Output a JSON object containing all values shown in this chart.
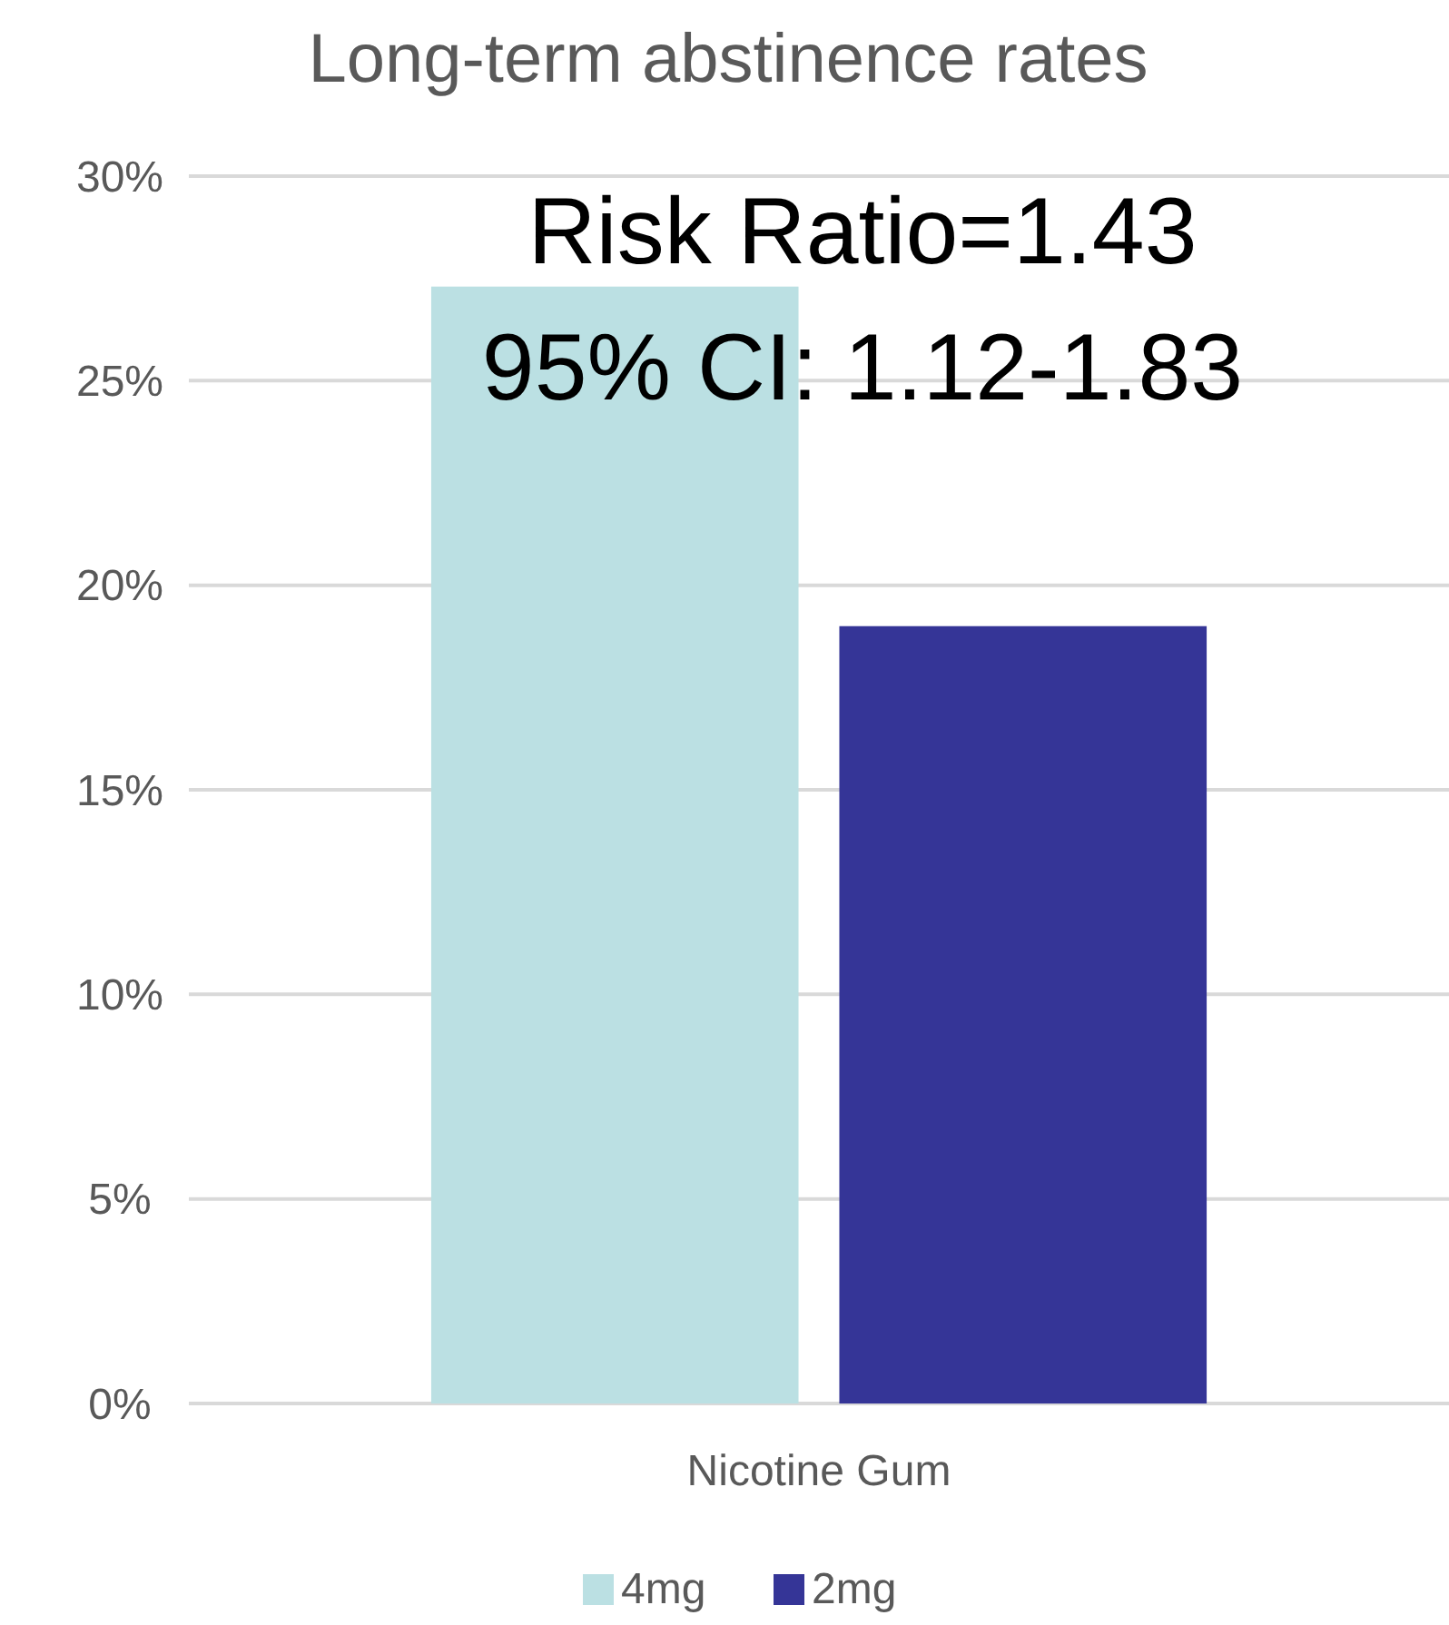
{
  "chart_data": {
    "type": "bar",
    "title": "Long-term abstinence rates",
    "categories": [
      "Nicotine Gum"
    ],
    "series": [
      {
        "name": "4mg",
        "color": "#bbe0e3",
        "values": [
          27.3
        ]
      },
      {
        "name": "2mg",
        "color": "#353597",
        "values": [
          19.0
        ]
      }
    ],
    "ylim": [
      0,
      30
    ],
    "yticks": [
      {
        "value": 0,
        "label": "0%"
      },
      {
        "value": 5,
        "label": "5%"
      },
      {
        "value": 10,
        "label": "10%"
      },
      {
        "value": 15,
        "label": "15%"
      },
      {
        "value": 20,
        "label": "20%"
      },
      {
        "value": 25,
        "label": "25%"
      },
      {
        "value": 30,
        "label": "30%"
      }
    ],
    "grid": "y",
    "legend": "bottom",
    "annotations": [
      "Risk Ratio=1.43",
      "95% CI: 1.12-1.83"
    ]
  }
}
